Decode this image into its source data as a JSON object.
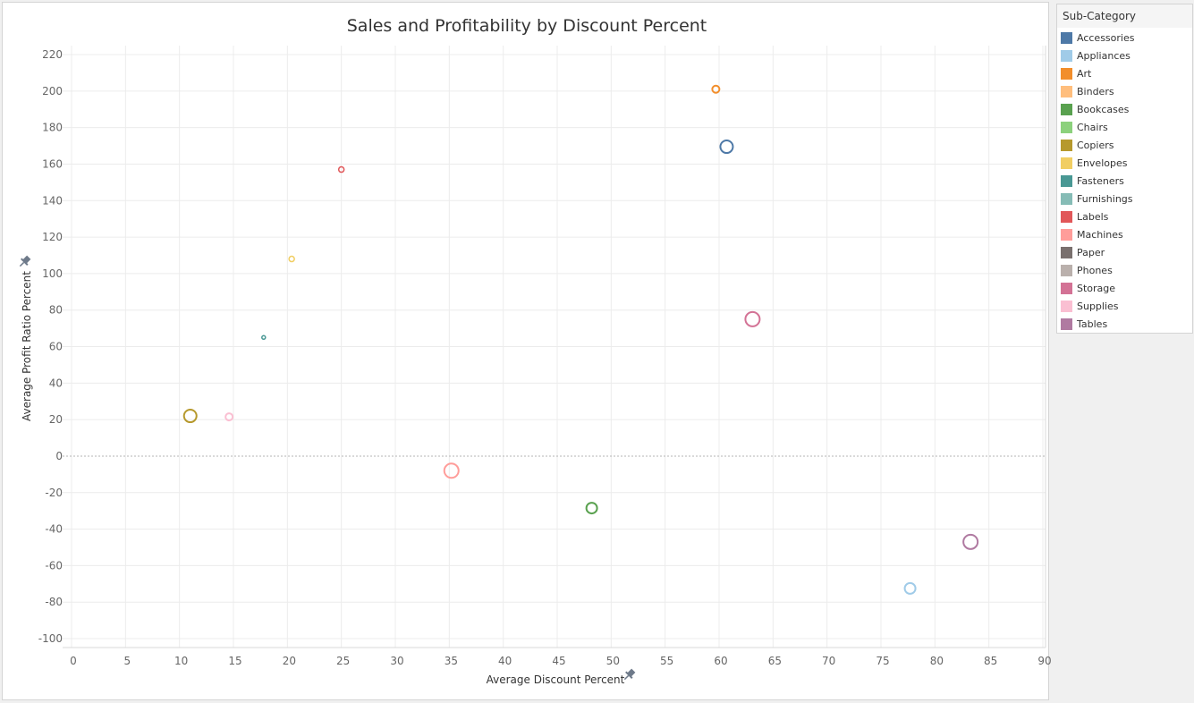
{
  "chart_data": {
    "type": "scatter",
    "title": "Sales and Profitability by Discount Percent",
    "xlabel": "Average Discount Percent",
    "ylabel": "Average Profit Ratio Percent",
    "xlim": [
      0,
      90
    ],
    "ylim": [
      -100,
      220
    ],
    "x_ticks": [
      0,
      5,
      10,
      15,
      20,
      25,
      30,
      35,
      40,
      45,
      50,
      55,
      60,
      65,
      70,
      75,
      80,
      85,
      90
    ],
    "y_ticks": [
      220,
      200,
      180,
      160,
      140,
      120,
      100,
      80,
      60,
      40,
      20,
      0,
      -20,
      -40,
      -60,
      -80,
      -100
    ],
    "grid": true,
    "zero_line": true,
    "legend_position": "right",
    "points": [
      {
        "category": "Art",
        "x": 59.7,
        "y": 201.0,
        "size": 3
      },
      {
        "category": "Accessories",
        "x": 60.7,
        "y": 169.5,
        "size": 6
      },
      {
        "category": "Labels",
        "x": 25.0,
        "y": 157.0,
        "size": 2
      },
      {
        "category": "Envelopes",
        "x": 20.4,
        "y": 108.0,
        "size": 2
      },
      {
        "category": "Fasteners",
        "x": 17.8,
        "y": 65.0,
        "size": 1
      },
      {
        "category": "Storage",
        "x": 63.1,
        "y": 75.0,
        "size": 7
      },
      {
        "category": "Copiers",
        "x": 11.0,
        "y": 22.0,
        "size": 6
      },
      {
        "category": "Supplies",
        "x": 14.6,
        "y": 21.5,
        "size": 3
      },
      {
        "category": "Machines",
        "x": 35.2,
        "y": -8.0,
        "size": 7
      },
      {
        "category": "Bookcases",
        "x": 48.2,
        "y": -28.5,
        "size": 5
      },
      {
        "category": "Tables",
        "x": 83.3,
        "y": -47.0,
        "size": 7
      },
      {
        "category": "Appliances",
        "x": 77.7,
        "y": -72.5,
        "size": 5
      }
    ]
  },
  "legend": {
    "title": "Sub-Category",
    "items": [
      {
        "label": "Accessories",
        "color": "#4e79a7"
      },
      {
        "label": "Appliances",
        "color": "#a0cbe8"
      },
      {
        "label": "Art",
        "color": "#f28e2b"
      },
      {
        "label": "Binders",
        "color": "#ffbe7d"
      },
      {
        "label": "Bookcases",
        "color": "#59a14f"
      },
      {
        "label": "Chairs",
        "color": "#8cd17d"
      },
      {
        "label": "Copiers",
        "color": "#b6992d"
      },
      {
        "label": "Envelopes",
        "color": "#f1ce63"
      },
      {
        "label": "Fasteners",
        "color": "#499894"
      },
      {
        "label": "Furnishings",
        "color": "#86bcb6"
      },
      {
        "label": "Labels",
        "color": "#e15759"
      },
      {
        "label": "Machines",
        "color": "#ff9d9a"
      },
      {
        "label": "Paper",
        "color": "#79706e"
      },
      {
        "label": "Phones",
        "color": "#bab0ac"
      },
      {
        "label": "Storage",
        "color": "#d37295"
      },
      {
        "label": "Supplies",
        "color": "#fabfd2"
      },
      {
        "label": "Tables",
        "color": "#b07aa1"
      }
    ]
  },
  "icons": {
    "x_axis_pin": "pin-icon",
    "y_axis_pin": "pin-icon"
  }
}
